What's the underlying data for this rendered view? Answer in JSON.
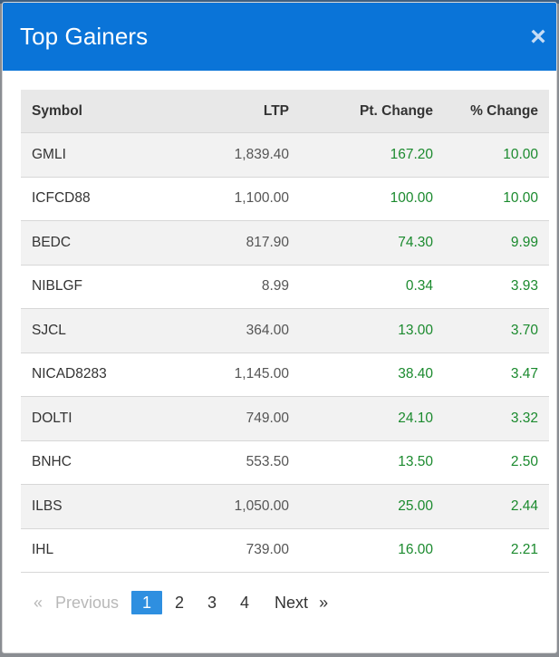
{
  "modal": {
    "title": "Top Gainers",
    "close_glyph": "×",
    "close_icon": "close-icon"
  },
  "table": {
    "headers": {
      "symbol": "Symbol",
      "ltp": "LTP",
      "pt_change": "Pt. Change",
      "pct_change": "% Change"
    },
    "rows": [
      {
        "symbol": "GMLI",
        "ltp": "1,839.40",
        "pt_change": "167.20",
        "pct_change": "10.00"
      },
      {
        "symbol": "ICFCD88",
        "ltp": "1,100.00",
        "pt_change": "100.00",
        "pct_change": "10.00"
      },
      {
        "symbol": "BEDC",
        "ltp": "817.90",
        "pt_change": "74.30",
        "pct_change": "9.99"
      },
      {
        "symbol": "NIBLGF",
        "ltp": "8.99",
        "pt_change": "0.34",
        "pct_change": "3.93"
      },
      {
        "symbol": "SJCL",
        "ltp": "364.00",
        "pt_change": "13.00",
        "pct_change": "3.70"
      },
      {
        "symbol": "NICAD8283",
        "ltp": "1,145.00",
        "pt_change": "38.40",
        "pct_change": "3.47"
      },
      {
        "symbol": "DOLTI",
        "ltp": "749.00",
        "pt_change": "24.10",
        "pct_change": "3.32"
      },
      {
        "symbol": "BNHC",
        "ltp": "553.50",
        "pt_change": "13.50",
        "pct_change": "2.50"
      },
      {
        "symbol": "ILBS",
        "ltp": "1,050.00",
        "pt_change": "25.00",
        "pct_change": "2.44"
      },
      {
        "symbol": "IHL",
        "ltp": "739.00",
        "pt_change": "16.00",
        "pct_change": "2.21"
      }
    ]
  },
  "pagination": {
    "prev_arrow": "«",
    "prev_label": "Previous",
    "pages": [
      "1",
      "2",
      "3",
      "4"
    ],
    "current_page": "1",
    "next_label": "Next",
    "next_arrow": "»"
  },
  "colors": {
    "header_bg": "#0a74d8",
    "positive": "#1b8a2e",
    "active_page": "#2e8fe0"
  }
}
